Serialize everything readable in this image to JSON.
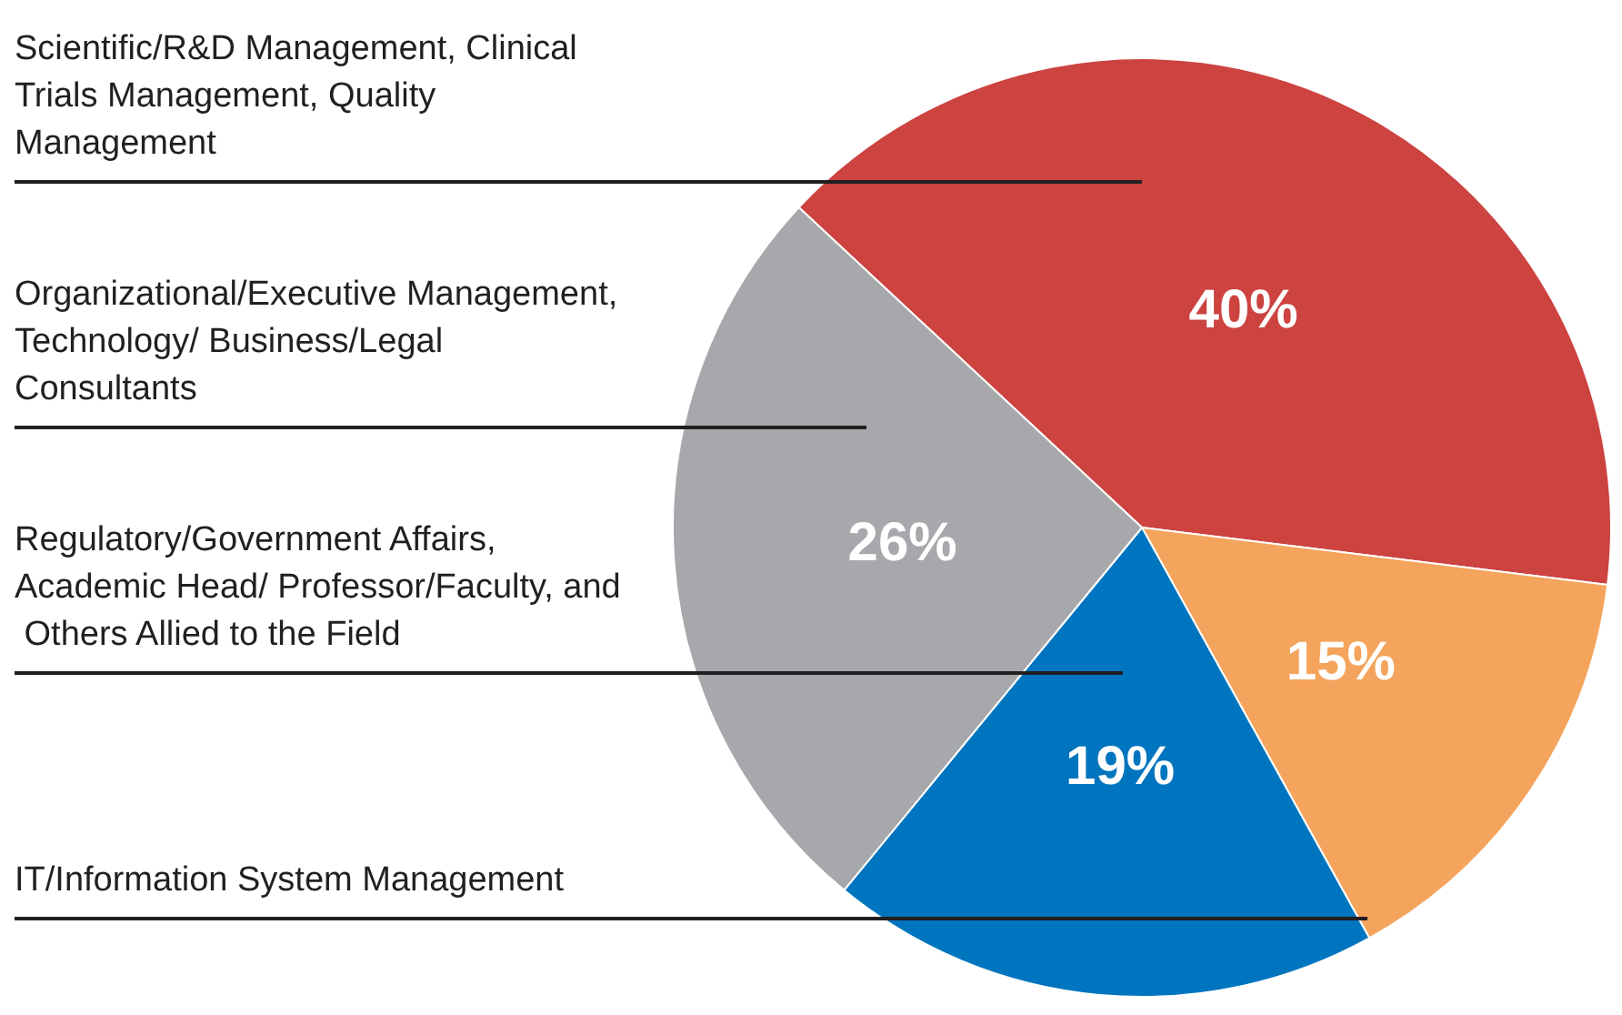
{
  "chart_data": {
    "type": "pie",
    "categories": [
      "Scientific/R&D Management, Clinical Trials Management, Quality Management",
      "IT/Information System Management",
      "Regulatory/Government Affairs, Academic Head/ Professor/Faculty, and Others Allied to the Field",
      "Organizational/Executive Management, Technology/ Business/Legal Consultants"
    ],
    "values": [
      40,
      15,
      19,
      26
    ],
    "colors": [
      "#cc4340",
      "#f4a45c",
      "#0075bf",
      "#a7a8ab"
    ],
    "value_labels": [
      "40%",
      "15%",
      "19%",
      "26%"
    ],
    "legend": false
  }
}
